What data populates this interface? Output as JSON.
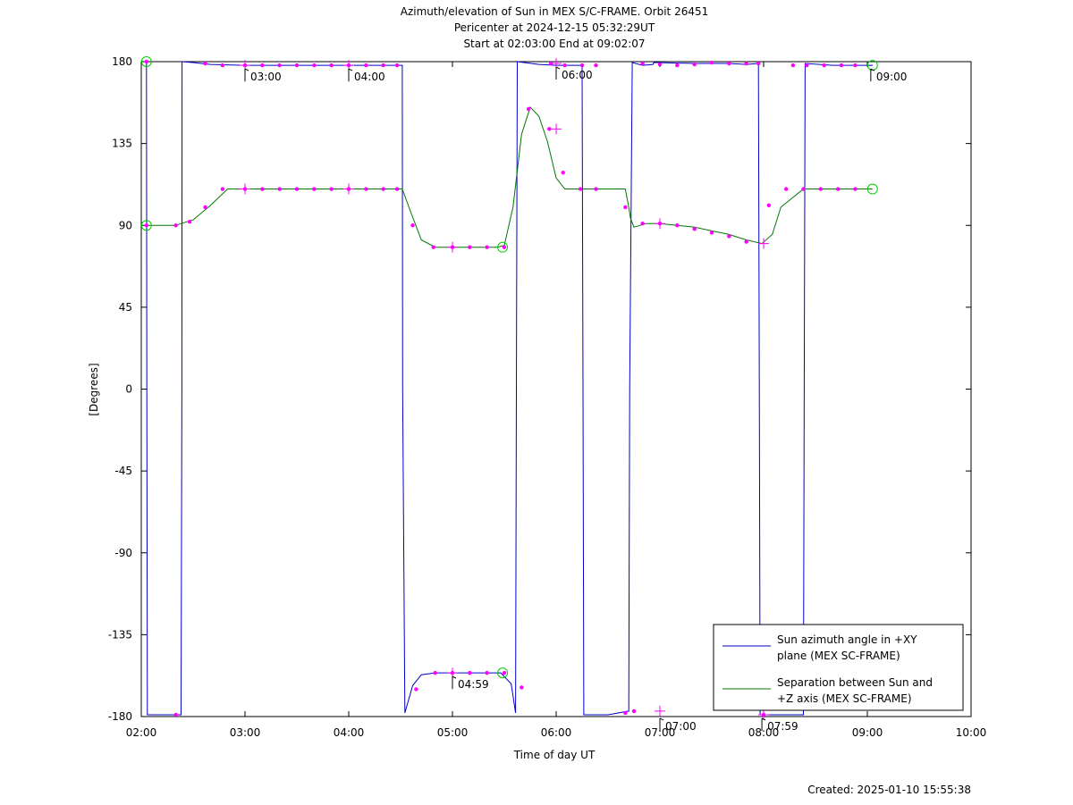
{
  "chart_data": {
    "type": "line",
    "title_lines": [
      "Azimuth/elevation of Sun in MEX S/C-FRAME.  Orbit 26451",
      "Pericenter at 2024-12-15 05:32:29UT",
      "Start at 02:03:00 End at 09:02:07"
    ],
    "xlabel": "Time of day UT",
    "ylabel": "[Degrees]",
    "xlim": [
      120,
      600
    ],
    "ylim": [
      -180,
      180
    ],
    "x_ticks": [
      120,
      180,
      240,
      300,
      360,
      420,
      480,
      540,
      600
    ],
    "x_tick_labels": [
      "02:00",
      "03:00",
      "04:00",
      "05:00",
      "06:00",
      "07:00",
      "08:00",
      "09:00",
      "10:00"
    ],
    "y_ticks": [
      180,
      135,
      90,
      45,
      0,
      -45,
      -90,
      -135,
      -180
    ],
    "y_tick_labels": [
      "180",
      "135",
      "90",
      "45",
      "0",
      "-45",
      "-90",
      "-135",
      "-180"
    ],
    "grid": false,
    "legend_position": "bottom-right",
    "colors": {
      "azimuth": "#0000cc",
      "separation": "#007700",
      "markers": "#ff00ff",
      "endpoints": "#00cc00"
    },
    "series": [
      {
        "name": "Sun azimuth angle in +XY plane (MEX SC-FRAME)",
        "legend_lines": [
          "Sun azimuth angle in +XY",
          "plane (MEX SC-FRAME)"
        ],
        "x": [
          123,
          123.2,
          123.5,
          143,
          143.5,
          143.6,
          150,
          160,
          180,
          200,
          220,
          240,
          260,
          271,
          271.2,
          272.5,
          277,
          282,
          290,
          300,
          310,
          320,
          328,
          334,
          336.5,
          337,
          337.5,
          350,
          360,
          370,
          375,
          375.5,
          376,
          382,
          390,
          402,
          402.5,
          404,
          410,
          416,
          416.5,
          417,
          440,
          460,
          470,
          477,
          477.5,
          478,
          482,
          490,
          503,
          503.5,
          504,
          520,
          540,
          543,
          543.2
        ],
        "y": [
          180,
          0,
          -179,
          -179,
          0,
          180,
          179.5,
          178.5,
          178,
          178,
          178,
          178,
          178,
          178,
          0,
          -178,
          -163,
          -157,
          -156,
          -156,
          -156,
          -156,
          -156,
          -162,
          -178,
          0,
          180,
          178.5,
          178,
          178,
          178,
          0,
          -179,
          -179,
          -179,
          -177,
          0,
          179.5,
          178,
          178.5,
          179.5,
          179.5,
          179,
          179,
          178.5,
          179,
          0,
          -179,
          -179,
          -179,
          -179,
          0,
          179,
          178,
          178,
          178,
          178
        ]
      },
      {
        "name": "Separation between Sun and +Z axis (MEX SC-FRAME)",
        "legend_lines": [
          "Separation between Sun and",
          "+Z axis (MEX SC-FRAME)"
        ],
        "x": [
          123,
          140,
          143,
          150,
          160,
          170,
          180,
          200,
          220,
          240,
          260,
          271,
          276,
          282,
          290,
          300,
          310,
          320,
          326,
          330,
          335,
          340,
          345,
          350,
          355,
          360,
          365,
          375,
          382,
          390,
          400,
          402,
          403,
          405,
          412,
          420,
          430,
          440,
          450,
          460,
          470,
          479,
          485,
          490,
          503,
          510,
          520,
          530,
          543
        ],
        "y": [
          90,
          90,
          91,
          93,
          101,
          110,
          110,
          110,
          110,
          110,
          110,
          110,
          97,
          82,
          78,
          78,
          78,
          78,
          78,
          79,
          100,
          140,
          155,
          150,
          136,
          116,
          110,
          110,
          110,
          110,
          110,
          100,
          94,
          89,
          91,
          91,
          90,
          89,
          87,
          85,
          82,
          80,
          85,
          100,
          110,
          110,
          110,
          110,
          110
        ]
      }
    ],
    "markers": {
      "separation": {
        "x": [
          123,
          140,
          148,
          157,
          167,
          180,
          190,
          200,
          210,
          220,
          230,
          240,
          250,
          260,
          268,
          277,
          289,
          300,
          310,
          320,
          330,
          344,
          356,
          364,
          374,
          383,
          400,
          410,
          420,
          430,
          440,
          450,
          460,
          470,
          483,
          493,
          503,
          513,
          523,
          533
        ],
        "y": [
          90,
          90,
          92,
          100,
          110,
          110,
          110,
          110,
          110,
          110,
          110,
          110,
          110,
          110,
          110,
          90,
          78,
          78,
          78,
          78,
          78,
          154,
          143,
          119,
          110,
          110,
          100,
          91,
          91,
          90,
          88,
          86,
          84,
          81,
          101,
          110,
          110,
          110,
          110,
          110
        ]
      },
      "azimuth": {
        "x": [
          123,
          140,
          157,
          167,
          180,
          190,
          200,
          210,
          220,
          230,
          240,
          250,
          260,
          268,
          279,
          290,
          300,
          310,
          320,
          330,
          340,
          357,
          365,
          375,
          383,
          400,
          405,
          410,
          420,
          430,
          440,
          450,
          460,
          470,
          477,
          480,
          497,
          505,
          515,
          525,
          533
        ],
        "y": [
          180,
          -179,
          179,
          178,
          178,
          178,
          178,
          178,
          178,
          178,
          178,
          178,
          178,
          178,
          -165,
          -156,
          -156,
          -156,
          -156,
          -156,
          -164,
          179,
          178,
          178,
          178,
          -178,
          -177,
          179,
          178.5,
          178,
          178.5,
          179.5,
          179,
          179,
          179,
          -179,
          178,
          178,
          178,
          178,
          178
        ]
      },
      "crosses": [
        {
          "x": 180,
          "y": 178
        },
        {
          "x": 240,
          "y": 178
        },
        {
          "x": 300,
          "y": 78
        },
        {
          "x": 300,
          "y": -156
        },
        {
          "x": 360,
          "y": 143
        },
        {
          "x": 360,
          "y": 179
        },
        {
          "x": 420,
          "y": 91
        },
        {
          "x": 420,
          "y": -177
        },
        {
          "x": 480,
          "y": 80
        },
        {
          "x": 480,
          "y": -179
        },
        {
          "x": 180,
          "y": 110
        },
        {
          "x": 240,
          "y": 110
        }
      ],
      "endpoint_circles": [
        {
          "x": 123,
          "y": 180
        },
        {
          "x": 123,
          "y": 90
        },
        {
          "x": 329,
          "y": 78
        },
        {
          "x": 329,
          "y": -156
        },
        {
          "x": 543,
          "y": 178
        },
        {
          "x": 543,
          "y": 110
        }
      ]
    },
    "annotations": [
      {
        "x": 180,
        "y": 178,
        "text": "03:00",
        "dir": "down"
      },
      {
        "x": 240,
        "y": 178,
        "text": "04:00",
        "dir": "down"
      },
      {
        "x": 300,
        "y": -156,
        "text": "04:59",
        "dir": "down"
      },
      {
        "x": 360,
        "y": 179,
        "text": "06:00",
        "dir": "down"
      },
      {
        "x": 420,
        "y": -179,
        "text": "07:00",
        "dir": "down"
      },
      {
        "x": 479,
        "y": -179,
        "text": "07:59",
        "dir": "down"
      },
      {
        "x": 542,
        "y": 178,
        "text": "09:00",
        "dir": "down"
      }
    ]
  },
  "footer": {
    "created": "Created: 2025-01-10 15:55:38"
  }
}
